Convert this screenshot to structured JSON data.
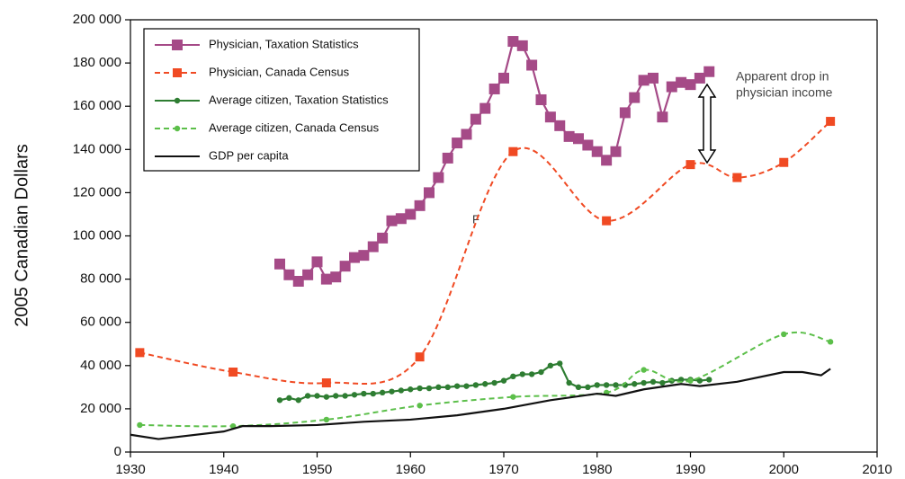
{
  "chart_data": {
    "type": "line",
    "y_label": "2005 Canadian Dollars",
    "xlim": [
      1930,
      2010
    ],
    "xticks": [
      1930,
      1940,
      1950,
      1960,
      1970,
      1980,
      1990,
      2000,
      2010
    ],
    "ylim": [
      0,
      200000
    ],
    "yticks": [
      0,
      {
        "value": 20000,
        "label": "20 000"
      },
      {
        "value": 40000,
        "label": "40 000"
      },
      {
        "value": 60000,
        "label": "60 000"
      },
      {
        "value": 80000,
        "label": "80 000"
      },
      {
        "value": 100000,
        "label": "100 000"
      },
      {
        "value": 120000,
        "label": "120 000"
      },
      {
        "value": 140000,
        "label": "140 000"
      },
      {
        "value": 160000,
        "label": "160 000"
      },
      {
        "value": 180000,
        "label": "180 000"
      },
      {
        "value": 200000,
        "label": "200 000"
      }
    ],
    "legend": "upper left",
    "annotations": [
      "Apparent drop in",
      "physician income",
      "F"
    ],
    "series": [
      {
        "name": "Physician, Taxation Statistics",
        "color": "#a54a87",
        "style": "solid",
        "marker": "square-large",
        "smooth": false,
        "x": [
          1946,
          1947,
          1948,
          1949,
          1950,
          1951,
          1952,
          1953,
          1954,
          1955,
          1956,
          1957,
          1958,
          1959,
          1960,
          1961,
          1962,
          1963,
          1964,
          1965,
          1966,
          1967,
          1968,
          1969,
          1970,
          1971,
          1972,
          1973,
          1974,
          1975,
          1976,
          1977,
          1978,
          1979,
          1980,
          1981,
          1982,
          1983,
          1984,
          1985,
          1986,
          1987,
          1988,
          1989,
          1990,
          1991,
          1992
        ],
        "values": [
          87000,
          82000,
          79000,
          82000,
          88000,
          80000,
          81000,
          86000,
          90000,
          91000,
          95000,
          99000,
          107000,
          108000,
          110000,
          114000,
          120000,
          127000,
          136000,
          143000,
          147000,
          154000,
          159000,
          168000,
          173000,
          190000,
          188000,
          179000,
          163000,
          155000,
          151000,
          146000,
          145000,
          142000,
          139000,
          135000,
          139000,
          157000,
          164000,
          172000,
          173000,
          155000,
          169000,
          171000,
          170000,
          173000,
          176000
        ]
      },
      {
        "name": "Physician, Canada Census",
        "color": "#f04a23",
        "style": "dashed",
        "marker": "square",
        "smooth": true,
        "x": [
          1931,
          1941,
          1951,
          1961,
          1971,
          1981,
          1990,
          1995,
          2000,
          2005
        ],
        "values": [
          46000,
          37000,
          32000,
          44000,
          139000,
          107000,
          133000,
          127000,
          134000,
          153000
        ]
      },
      {
        "name": "Average citizen, Taxation Statistics",
        "color": "#2e7d32",
        "style": "solid",
        "marker": "dot",
        "smooth": false,
        "x": [
          1946,
          1947,
          1948,
          1949,
          1950,
          1951,
          1952,
          1953,
          1954,
          1955,
          1956,
          1957,
          1958,
          1959,
          1960,
          1961,
          1962,
          1963,
          1964,
          1965,
          1966,
          1967,
          1968,
          1969,
          1970,
          1971,
          1972,
          1973,
          1974,
          1975,
          1976,
          1977,
          1978,
          1979,
          1980,
          1981,
          1982,
          1983,
          1984,
          1985,
          1986,
          1987,
          1988,
          1989,
          1990,
          1991,
          1992
        ],
        "values": [
          24000,
          25000,
          24000,
          26000,
          26000,
          25500,
          26000,
          26000,
          26500,
          27000,
          27000,
          27500,
          28000,
          28500,
          29000,
          29500,
          29500,
          30000,
          30000,
          30500,
          30500,
          31000,
          31500,
          32000,
          33000,
          35000,
          36000,
          36000,
          37000,
          40000,
          41000,
          32000,
          30000,
          30000,
          31000,
          31000,
          31000,
          31000,
          31500,
          32000,
          32500,
          32000,
          33000,
          33500,
          33500,
          33000,
          33500
        ]
      },
      {
        "name": "Average citizen, Canada Census",
        "color": "#5cbf4a",
        "style": "dashed",
        "marker": "dot",
        "smooth": true,
        "x": [
          1931,
          1941,
          1951,
          1961,
          1971,
          1981,
          1985,
          1990,
          2000,
          2005
        ],
        "values": [
          12500,
          12000,
          15000,
          21500,
          25500,
          27500,
          38000,
          33000,
          54500,
          51000
        ]
      },
      {
        "name": "GDP per capita",
        "color": "#111111",
        "style": "solid",
        "marker": "none",
        "smooth": false,
        "x": [
          1930,
          1933,
          1935,
          1940,
          1942,
          1945,
          1950,
          1955,
          1960,
          1965,
          1970,
          1975,
          1980,
          1982,
          1985,
          1989,
          1991,
          1995,
          2000,
          2002,
          2004,
          2005
        ],
        "values": [
          8000,
          6000,
          7000,
          9500,
          12000,
          12000,
          12500,
          14000,
          15000,
          17000,
          20000,
          24000,
          27000,
          26000,
          29000,
          31500,
          30500,
          32500,
          37000,
          37000,
          35500,
          38500
        ]
      }
    ]
  }
}
